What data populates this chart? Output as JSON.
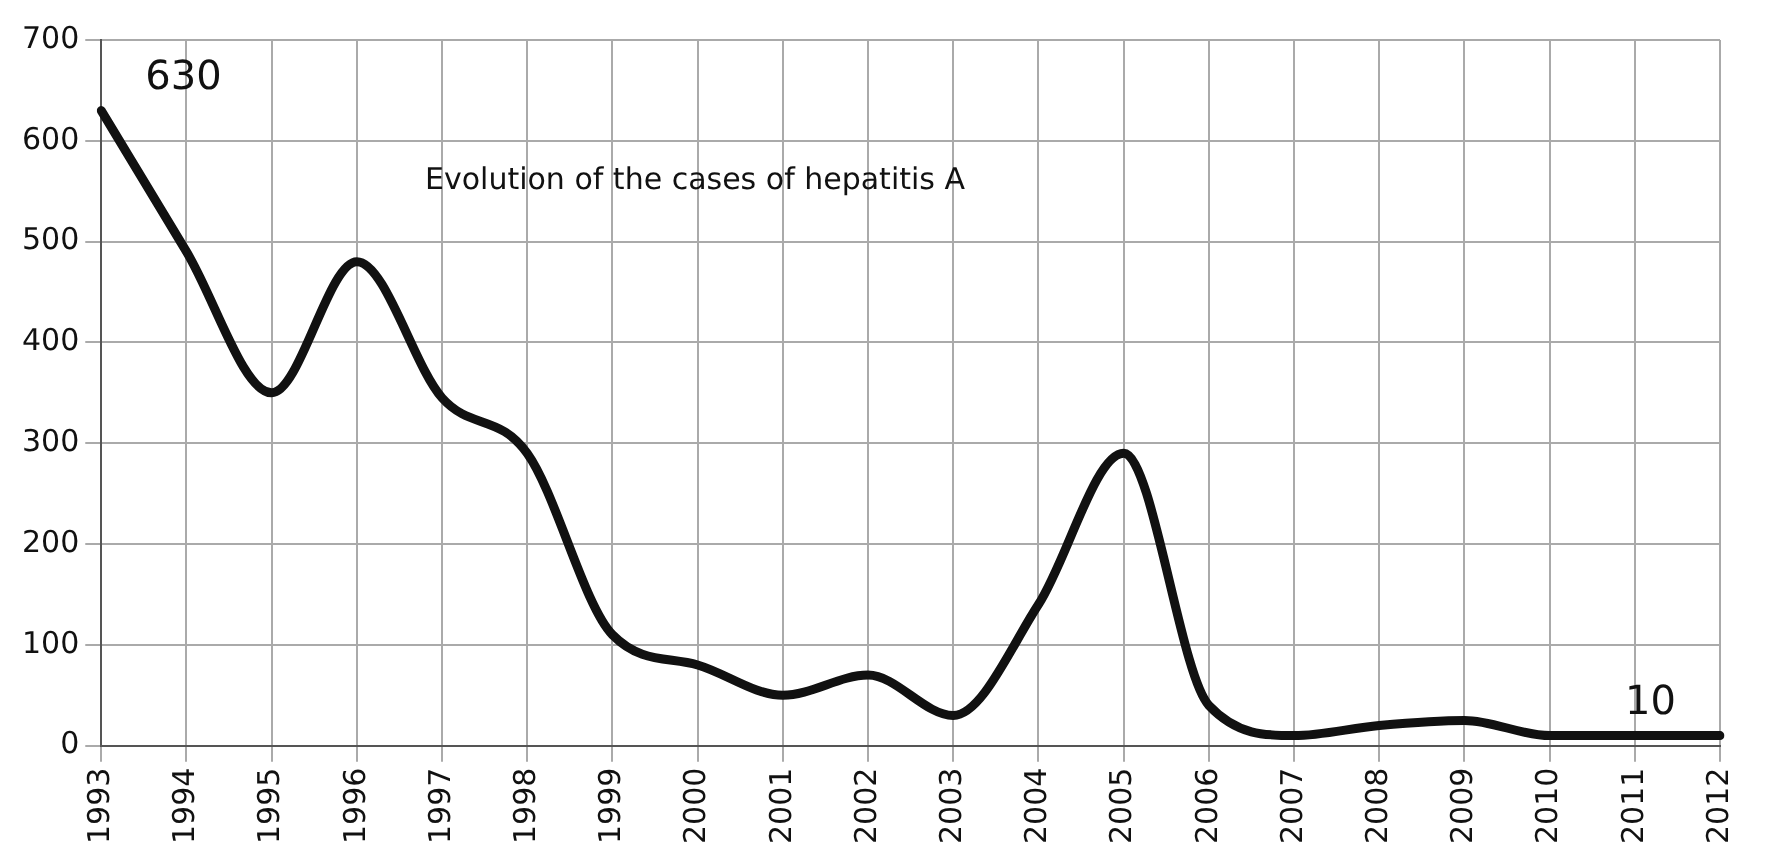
{
  "chart_data": {
    "type": "line",
    "title": "Evolution of the cases of hepatitis A",
    "categories": [
      "1993",
      "1994",
      "1995",
      "1996",
      "1997",
      "1998",
      "1999",
      "2000",
      "2001",
      "2002",
      "2003",
      "2004",
      "2005",
      "2006",
      "2007",
      "2008",
      "2009",
      "2010",
      "2011",
      "2012"
    ],
    "series": [
      {
        "color": "#111111",
        "values": [
          630,
          490,
          350,
          480,
          345,
          290,
          110,
          80,
          50,
          70,
          30,
          140,
          290,
          40,
          10,
          20,
          25,
          10,
          10,
          10
        ]
      }
    ],
    "ylim": [
      0,
      700
    ],
    "yticks": [
      0,
      100,
      200,
      300,
      400,
      500,
      600,
      700
    ],
    "annotations": [
      {
        "text": "630",
        "x": "1993",
        "y": 630
      },
      {
        "text": "10",
        "x": "2012",
        "y": 10
      }
    ],
    "grid": true,
    "legend": false,
    "marker": "none",
    "line_style": "solid"
  }
}
